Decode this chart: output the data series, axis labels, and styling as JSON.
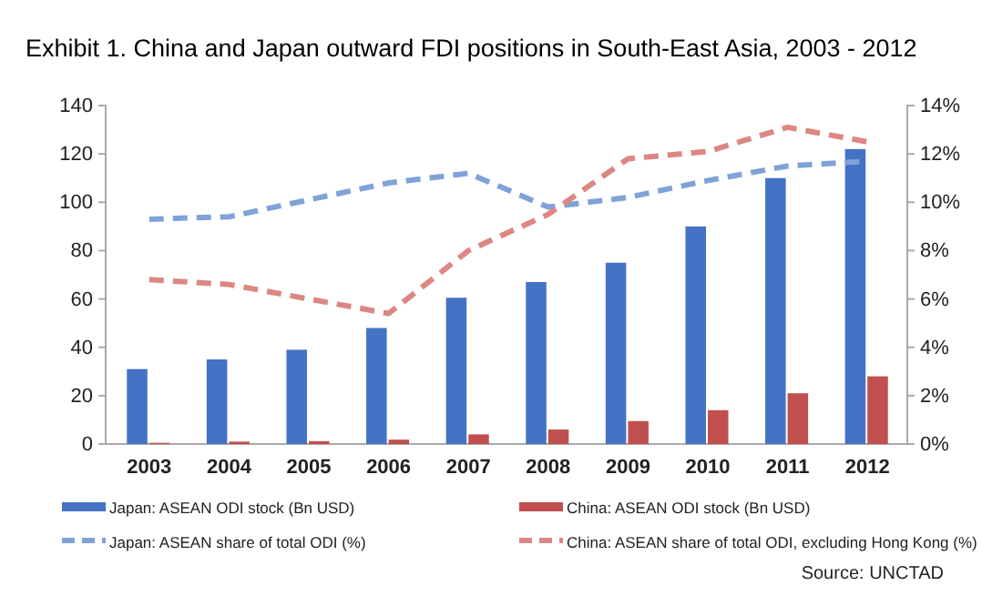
{
  "chart_data": {
    "type": "bar",
    "title": "Exhibit 1. China and Japan outward FDI positions in South-East Asia, 2003 - 2012",
    "categories": [
      "2003",
      "2004",
      "2005",
      "2006",
      "2007",
      "2008",
      "2009",
      "2010",
      "2011",
      "2012"
    ],
    "series": [
      {
        "name": "Japan: ASEAN ODI stock (Bn USD)",
        "color": "#4472c4",
        "values": [
          31,
          35,
          39,
          48,
          60.5,
          67,
          75,
          90,
          110,
          122
        ]
      },
      {
        "name": "China: ASEAN ODI stock (Bn USD)",
        "color": "#c0504d",
        "values": [
          0.5,
          1,
          1.2,
          1.8,
          4,
          6,
          9.5,
          14,
          21,
          28
        ]
      },
      {
        "name": "Japan: ASEAN share of total ODI (%)",
        "type": "line",
        "axis": "y2",
        "line_style": "dashed",
        "color": "#7fa3d8",
        "values": [
          9.3,
          9.4,
          10.1,
          10.8,
          11.2,
          9.8,
          10.2,
          10.9,
          11.5,
          11.7
        ]
      },
      {
        "name": "China: ASEAN share of total ODI, excluding Hong Kong (%)",
        "type": "line",
        "axis": "y2",
        "line_style": "dashed",
        "color": "#dc8784",
        "values": [
          6.8,
          6.6,
          6.0,
          5.4,
          8.0,
          9.5,
          11.8,
          12.1,
          13.1,
          12.5
        ]
      }
    ],
    "ylim": [
      0,
      140
    ],
    "yticks": [
      0,
      20,
      40,
      60,
      80,
      100,
      120,
      140
    ],
    "y2lim": [
      0,
      14
    ],
    "y2ticks": [
      {
        "value": 0,
        "label": "0%"
      },
      {
        "value": 2,
        "label": "2%"
      },
      {
        "value": 4,
        "label": "4%"
      },
      {
        "value": 6,
        "label": "6%"
      },
      {
        "value": 8,
        "label": "8%"
      },
      {
        "value": 10,
        "label": "10%"
      },
      {
        "value": 12,
        "label": "12%"
      },
      {
        "value": 14,
        "label": "14%"
      }
    ],
    "legend": "bottom",
    "grid": false,
    "annotations": [
      "Source: UNCTAD"
    ]
  }
}
